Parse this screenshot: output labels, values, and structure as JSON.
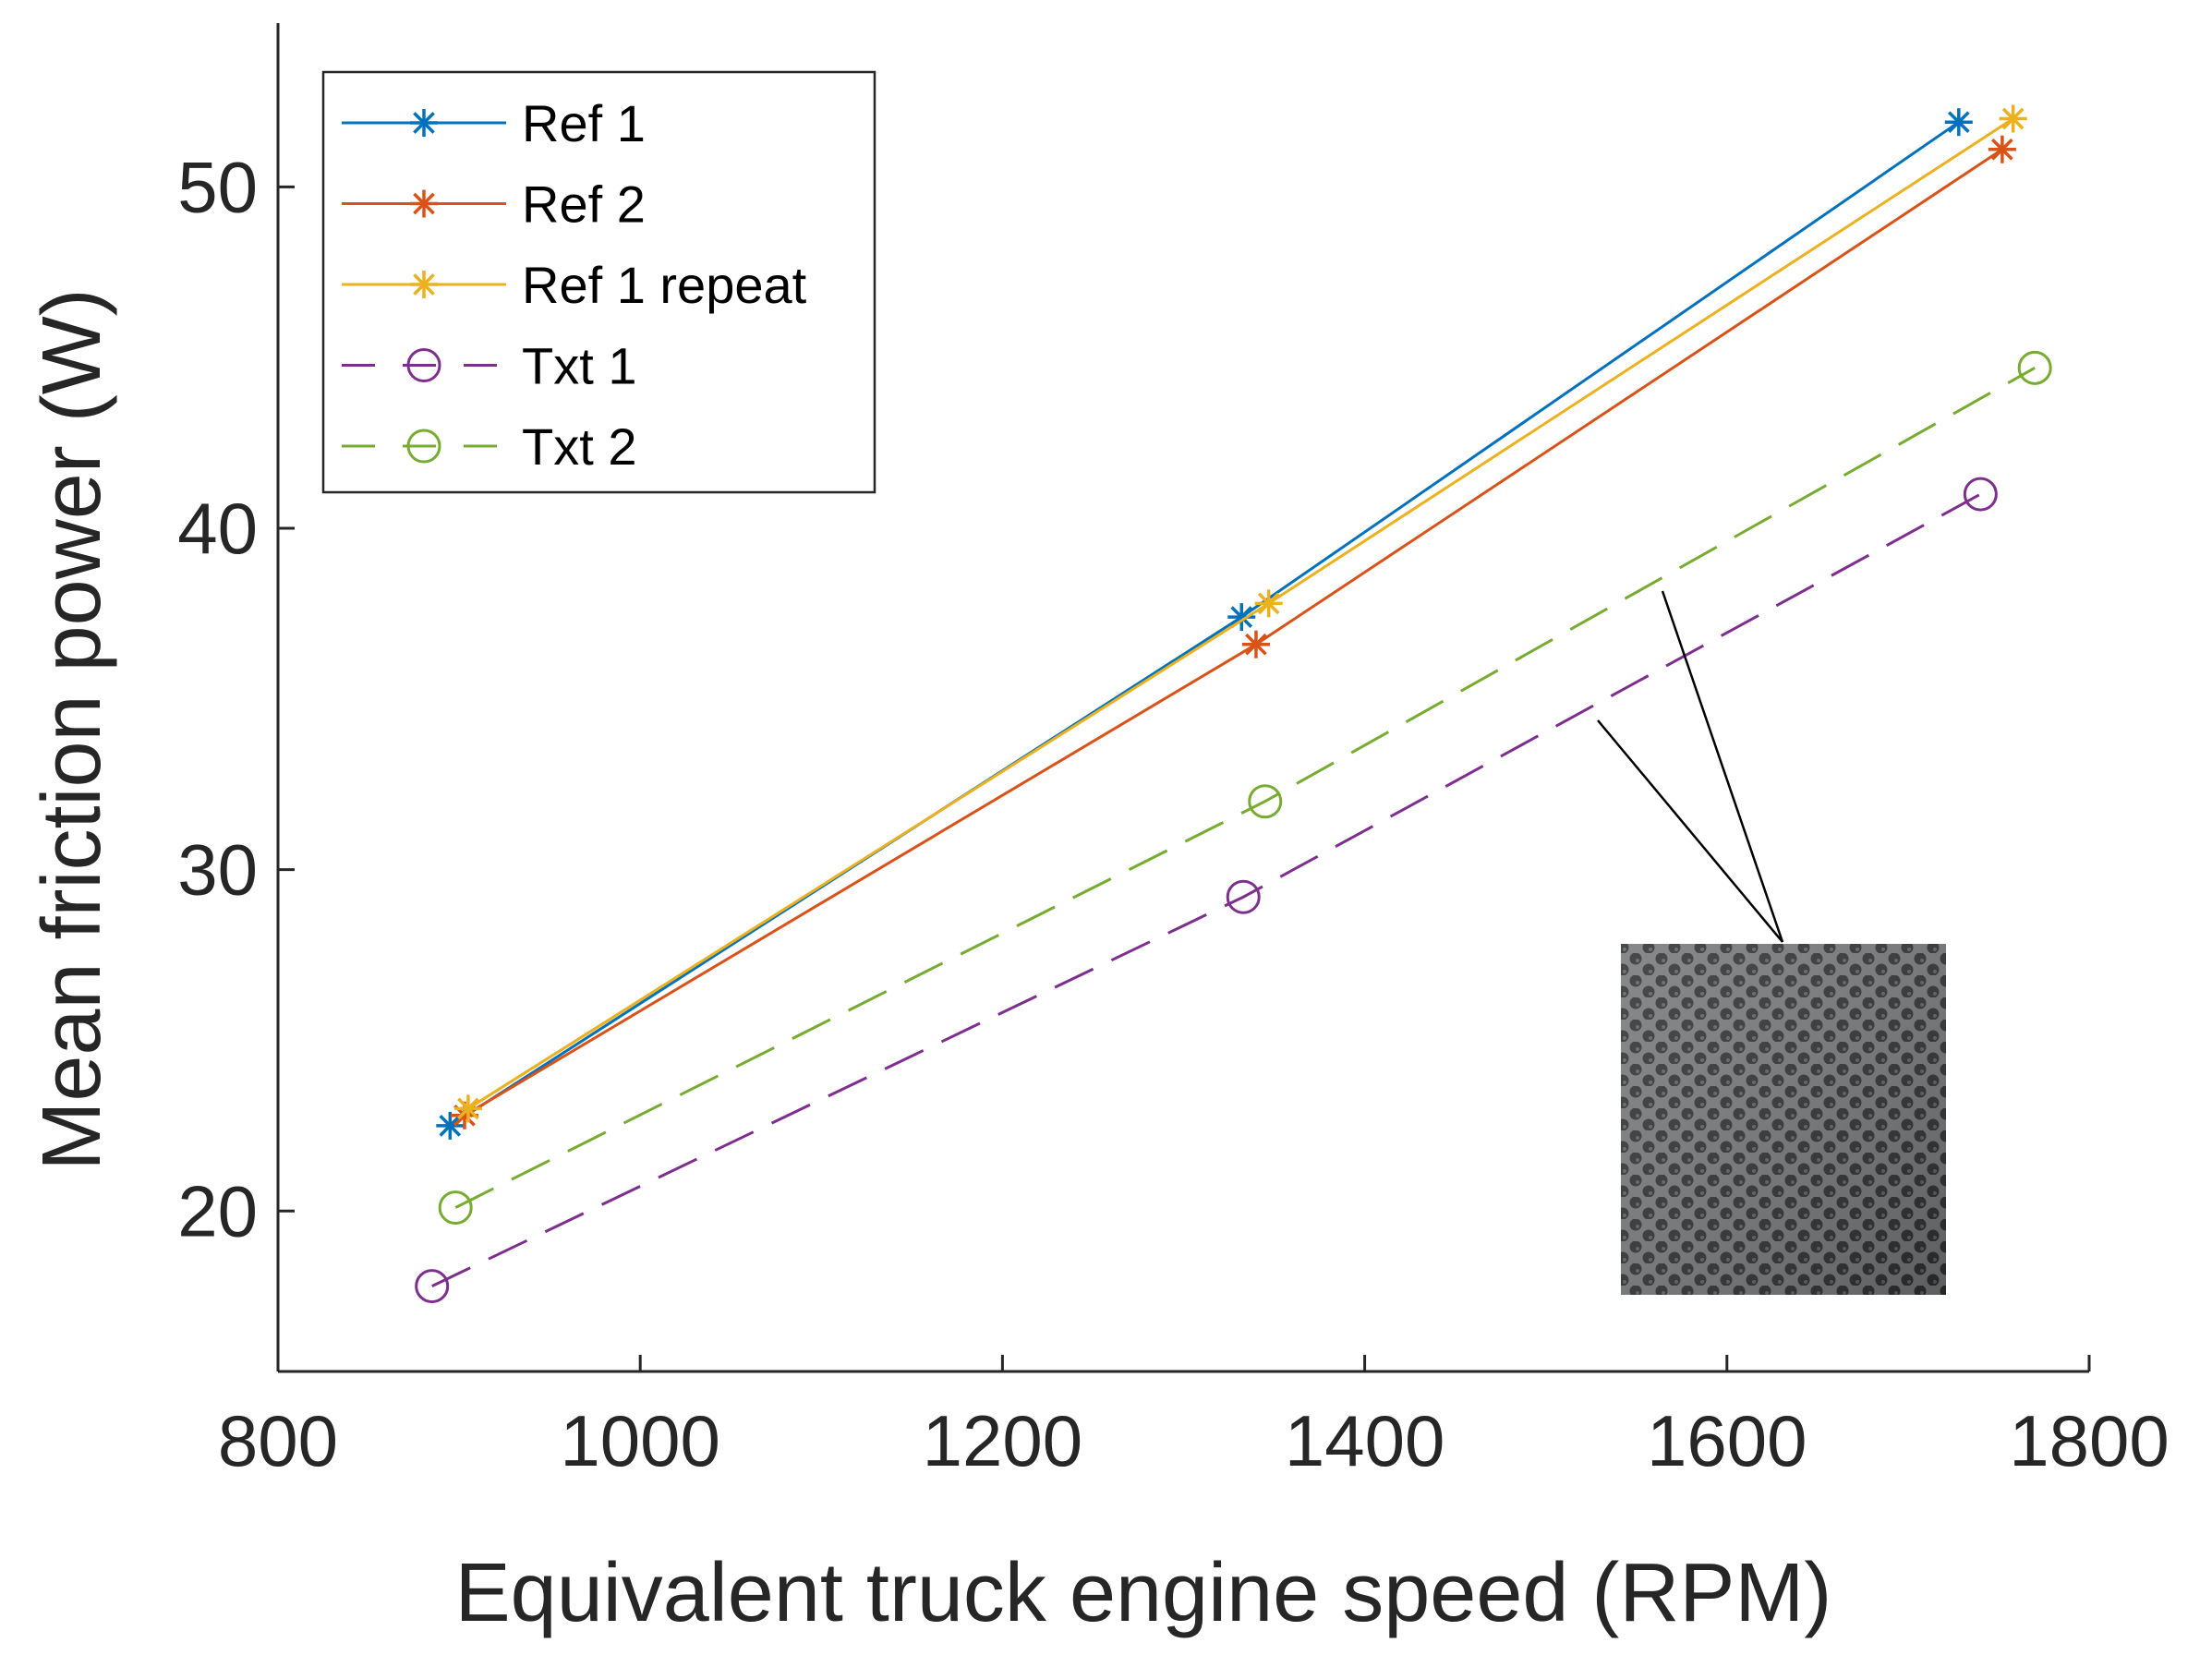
{
  "chart_data": {
    "type": "line",
    "xlabel": "Equivalent truck engine speed (RPM)",
    "ylabel": "Mean friction power (W)",
    "xlim": [
      800,
      1800
    ],
    "ylim": [
      15.3,
      54.8
    ],
    "xticks": [
      800,
      1000,
      1200,
      1400,
      1600,
      1800
    ],
    "yticks": [
      20,
      30,
      40,
      50
    ],
    "grid": false,
    "legend_position": "top-left",
    "series": [
      {
        "name": "Ref 1",
        "color": "#0072BD",
        "marker": "asterisk",
        "linestyle": "solid",
        "x": [
          895,
          1332,
          1728
        ],
        "y": [
          22.5,
          37.4,
          51.9
        ]
      },
      {
        "name": "Ref 2",
        "color": "#D95319",
        "marker": "asterisk",
        "linestyle": "solid",
        "x": [
          903,
          1340,
          1752
        ],
        "y": [
          22.8,
          36.6,
          51.1
        ]
      },
      {
        "name": "Ref 1 repeat",
        "color": "#EDB120",
        "marker": "asterisk",
        "linestyle": "solid",
        "x": [
          905,
          1347,
          1758
        ],
        "y": [
          23.0,
          37.8,
          52.0
        ]
      },
      {
        "name": "Txt 1",
        "color": "#7E2F8E",
        "marker": "circle",
        "linestyle": "dashed",
        "x": [
          885,
          1333,
          1740
        ],
        "y": [
          17.8,
          29.2,
          41.0
        ]
      },
      {
        "name": "Txt 2",
        "color": "#77AC30",
        "marker": "circle",
        "linestyle": "dashed",
        "x": [
          898,
          1345,
          1770
        ],
        "y": [
          20.1,
          32.0,
          44.7
        ]
      }
    ],
    "inset": {
      "description_icon": "textured-surface-photo-icon"
    }
  }
}
